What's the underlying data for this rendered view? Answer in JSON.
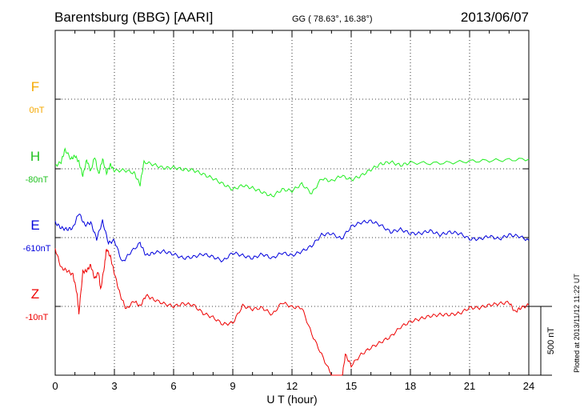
{
  "chart_data": {
    "type": "line",
    "title": "Barentsburg (BBG)  [AARI]",
    "coords": "GG ( 78.63°,  16.38°)",
    "date": "2013/06/07",
    "xlabel": "U T (hour)",
    "xlim": [
      0,
      24
    ],
    "xticks": [
      "0",
      "3",
      "6",
      "9",
      "12",
      "15",
      "18",
      "21",
      "24"
    ],
    "scale_label": "500 nT",
    "plotted_note": "Plotted at 2013/11/12 11:22 UT",
    "grid": true,
    "series": [
      {
        "name": "F",
        "offset": "0nT",
        "color": "#f5a800",
        "label_color": "#f5a800",
        "points": []
      },
      {
        "name": "H",
        "offset": "-80nT",
        "color": "#22ee22",
        "label_color": "#22c222",
        "points": [
          [
            0,
            20
          ],
          [
            0.3,
            50
          ],
          [
            0.5,
            140
          ],
          [
            0.8,
            70
          ],
          [
            1.0,
            95
          ],
          [
            1.2,
            50
          ],
          [
            1.4,
            -50
          ],
          [
            1.6,
            65
          ],
          [
            1.8,
            -20
          ],
          [
            2.0,
            90
          ],
          [
            2.2,
            -40
          ],
          [
            2.4,
            70
          ],
          [
            2.6,
            -30
          ],
          [
            2.8,
            30
          ],
          [
            3.0,
            -15
          ],
          [
            3.5,
            -10
          ],
          [
            4.0,
            -30
          ],
          [
            4.3,
            -115
          ],
          [
            4.5,
            50
          ],
          [
            5.0,
            30
          ],
          [
            5.5,
            5
          ],
          [
            6.0,
            10
          ],
          [
            6.5,
            -5
          ],
          [
            7.0,
            -10
          ],
          [
            7.5,
            -40
          ],
          [
            8.0,
            -70
          ],
          [
            8.5,
            -110
          ],
          [
            9.0,
            -150
          ],
          [
            9.5,
            -120
          ],
          [
            10.0,
            -140
          ],
          [
            10.5,
            -170
          ],
          [
            11.0,
            -200
          ],
          [
            11.5,
            -150
          ],
          [
            12.0,
            -160
          ],
          [
            12.5,
            -110
          ],
          [
            13.0,
            -180
          ],
          [
            13.5,
            -70
          ],
          [
            14.0,
            -90
          ],
          [
            14.5,
            -50
          ],
          [
            15.0,
            -80
          ],
          [
            15.5,
            -50
          ],
          [
            16.0,
            -5
          ],
          [
            16.5,
            35
          ],
          [
            17.0,
            50
          ],
          [
            17.5,
            25
          ],
          [
            18.0,
            45
          ],
          [
            19.0,
            40
          ],
          [
            20.0,
            45
          ],
          [
            21.0,
            55
          ],
          [
            22.0,
            60
          ],
          [
            23.0,
            65
          ],
          [
            24.0,
            70
          ]
        ]
      },
      {
        "name": "E",
        "offset": "-610nT",
        "color": "#0000dd",
        "label_color": "#0000dd",
        "points": [
          [
            0,
            110
          ],
          [
            0.3,
            70
          ],
          [
            0.6,
            60
          ],
          [
            0.9,
            70
          ],
          [
            1.2,
            180
          ],
          [
            1.5,
            90
          ],
          [
            1.8,
            110
          ],
          [
            2.1,
            -10
          ],
          [
            2.4,
            120
          ],
          [
            2.7,
            -40
          ],
          [
            3.0,
            -20
          ],
          [
            3.4,
            -180
          ],
          [
            3.8,
            -110
          ],
          [
            4.3,
            -40
          ],
          [
            4.6,
            -130
          ],
          [
            5.0,
            -110
          ],
          [
            5.5,
            -100
          ],
          [
            6.0,
            -120
          ],
          [
            6.5,
            -150
          ],
          [
            7.0,
            -140
          ],
          [
            7.5,
            -120
          ],
          [
            8.0,
            -140
          ],
          [
            8.5,
            -170
          ],
          [
            9.0,
            -110
          ],
          [
            9.5,
            -130
          ],
          [
            10.0,
            -150
          ],
          [
            10.5,
            -120
          ],
          [
            11.0,
            -150
          ],
          [
            11.5,
            -110
          ],
          [
            12.0,
            -130
          ],
          [
            12.5,
            -100
          ],
          [
            13.0,
            -60
          ],
          [
            13.5,
            20
          ],
          [
            14.0,
            30
          ],
          [
            14.5,
            -10
          ],
          [
            15.0,
            80
          ],
          [
            15.5,
            110
          ],
          [
            16.0,
            120
          ],
          [
            16.5,
            90
          ],
          [
            17.0,
            40
          ],
          [
            17.5,
            60
          ],
          [
            18.0,
            30
          ],
          [
            18.5,
            30
          ],
          [
            19.0,
            50
          ],
          [
            19.5,
            20
          ],
          [
            20.0,
            40
          ],
          [
            20.5,
            30
          ],
          [
            21.0,
            -10
          ],
          [
            21.5,
            -10
          ],
          [
            22.0,
            10
          ],
          [
            22.5,
            -10
          ],
          [
            23.0,
            20
          ],
          [
            23.5,
            10
          ],
          [
            24.0,
            -20
          ]
        ]
      },
      {
        "name": "Z",
        "offset": "-10nT",
        "color": "#ee0000",
        "label_color": "#ee0000",
        "points": [
          [
            0,
            420
          ],
          [
            0.3,
            280
          ],
          [
            0.6,
            260
          ],
          [
            0.9,
            230
          ],
          [
            1.1,
            100
          ],
          [
            1.2,
            -50
          ],
          [
            1.4,
            250
          ],
          [
            1.6,
            260
          ],
          [
            1.8,
            300
          ],
          [
            2.0,
            200
          ],
          [
            2.2,
            250
          ],
          [
            2.3,
            120
          ],
          [
            2.5,
            300
          ],
          [
            2.6,
            420
          ],
          [
            2.8,
            360
          ],
          [
            3.0,
            240
          ],
          [
            3.3,
            80
          ],
          [
            3.6,
            -20
          ],
          [
            4.0,
            40
          ],
          [
            4.3,
            0
          ],
          [
            4.6,
            80
          ],
          [
            5.0,
            50
          ],
          [
            5.5,
            20
          ],
          [
            6.0,
            0
          ],
          [
            6.5,
            20
          ],
          [
            7.0,
            10
          ],
          [
            7.5,
            -50
          ],
          [
            8.0,
            -80
          ],
          [
            8.5,
            -130
          ],
          [
            9.0,
            -120
          ],
          [
            9.5,
            5
          ],
          [
            10.0,
            -20
          ],
          [
            10.5,
            -10
          ],
          [
            11.0,
            -60
          ],
          [
            11.5,
            30
          ],
          [
            12.0,
            -5
          ],
          [
            12.5,
            -10
          ],
          [
            13.0,
            -200
          ],
          [
            13.5,
            -350
          ],
          [
            14.0,
            -500
          ],
          [
            14.5,
            -560
          ],
          [
            14.7,
            -350
          ],
          [
            15.0,
            -430
          ],
          [
            15.5,
            -350
          ],
          [
            16.0,
            -300
          ],
          [
            16.5,
            -260
          ],
          [
            17.0,
            -220
          ],
          [
            17.5,
            -150
          ],
          [
            18.0,
            -110
          ],
          [
            18.5,
            -90
          ],
          [
            19.0,
            -70
          ],
          [
            19.5,
            -60
          ],
          [
            20.0,
            -60
          ],
          [
            20.5,
            -50
          ],
          [
            21.0,
            -10
          ],
          [
            21.5,
            -10
          ],
          [
            22.0,
            10
          ],
          [
            22.5,
            20
          ],
          [
            23.0,
            30
          ],
          [
            23.3,
            -40
          ],
          [
            23.6,
            -10
          ],
          [
            24.0,
            10
          ]
        ]
      }
    ]
  }
}
